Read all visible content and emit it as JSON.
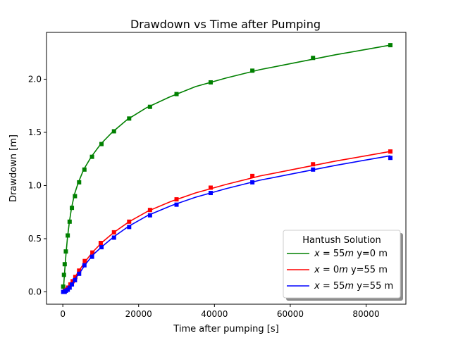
{
  "chart_data": {
    "type": "line",
    "title": "Drawdown vs Time after Pumping",
    "xlabel": "Time after pumping [s]",
    "ylabel": "Drawdown [m]",
    "xlim": [
      -4300,
      90500
    ],
    "ylim": [
      -0.116,
      2.44
    ],
    "xticks": [
      0,
      20000,
      40000,
      60000,
      80000
    ],
    "yticks": [
      0.0,
      0.5,
      1.0,
      1.5,
      2.0
    ],
    "xtick_labels": [
      "0",
      "20000",
      "40000",
      "60000",
      "80000"
    ],
    "ytick_labels": [
      "0.0",
      "0.5",
      "1.0",
      "1.5",
      "2.0"
    ],
    "grid": false,
    "legend": {
      "title": "Hantush Solution",
      "placement": "lower-right"
    },
    "series": [
      {
        "color": "#008000",
        "label_math": "x = 55m",
        "label_suffix": " y=0 m",
        "curve_x": [
          0,
          120,
          250,
          400,
          600,
          850,
          1200,
          1700,
          2300,
          3100,
          4000,
          5500,
          7500,
          10000,
          13000,
          17000,
          22000,
          28000,
          35000,
          43000,
          52000,
          62000,
          72000,
          80000,
          86400
        ],
        "curve_y": [
          0.0,
          0.02,
          0.07,
          0.15,
          0.25,
          0.36,
          0.5,
          0.65,
          0.79,
          0.92,
          1.02,
          1.15,
          1.27,
          1.39,
          1.5,
          1.62,
          1.73,
          1.83,
          1.93,
          2.01,
          2.09,
          2.16,
          2.23,
          2.28,
          2.32
        ],
        "marker_x": [
          100,
          300,
          500,
          800,
          1300,
          1800,
          2400,
          3200,
          4300,
          5700,
          7700,
          10200,
          13500,
          17500,
          23000,
          30000,
          39000,
          50000,
          66000,
          86400
        ],
        "marker_y": [
          0.05,
          0.16,
          0.26,
          0.38,
          0.53,
          0.66,
          0.79,
          0.9,
          1.03,
          1.15,
          1.27,
          1.39,
          1.51,
          1.63,
          1.74,
          1.86,
          1.97,
          2.08,
          2.2,
          2.32
        ]
      },
      {
        "color": "#ff0000",
        "label_math": "x = 0m",
        "label_suffix": " y=55 m",
        "curve_x": [
          0,
          300,
          700,
          1200,
          1800,
          2500,
          3400,
          4500,
          6000,
          8000,
          10500,
          13500,
          17500,
          22500,
          28500,
          35000,
          43000,
          52000,
          62000,
          72000,
          80000,
          86400
        ],
        "curve_y": [
          0.0,
          0.0,
          0.01,
          0.03,
          0.06,
          0.1,
          0.15,
          0.21,
          0.29,
          0.38,
          0.47,
          0.56,
          0.66,
          0.76,
          0.85,
          0.93,
          1.01,
          1.09,
          1.16,
          1.23,
          1.28,
          1.32
        ],
        "marker_x": [
          300,
          600,
          1000,
          1400,
          2000,
          2600,
          3300,
          4300,
          5800,
          7800,
          10000,
          13500,
          17500,
          23000,
          30000,
          39000,
          50000,
          66000,
          86400
        ],
        "marker_y": [
          0.0,
          0.01,
          0.02,
          0.04,
          0.07,
          0.1,
          0.14,
          0.2,
          0.29,
          0.37,
          0.46,
          0.56,
          0.66,
          0.77,
          0.87,
          0.98,
          1.09,
          1.2,
          1.32
        ]
      },
      {
        "color": "#0000ff",
        "label_math": "x = 55m",
        "label_suffix": " y=55 m",
        "curve_x": [
          0,
          300,
          700,
          1200,
          1800,
          2500,
          3400,
          4500,
          6000,
          8000,
          10500,
          13500,
          17500,
          22500,
          28500,
          35000,
          43000,
          52000,
          62000,
          72000,
          80000,
          86400
        ],
        "curve_y": [
          0.0,
          0.0,
          0.01,
          0.02,
          0.04,
          0.08,
          0.13,
          0.18,
          0.26,
          0.35,
          0.43,
          0.52,
          0.62,
          0.72,
          0.81,
          0.89,
          0.97,
          1.05,
          1.12,
          1.19,
          1.24,
          1.28
        ],
        "marker_x": [
          100,
          300,
          500,
          800,
          1300,
          1800,
          2400,
          3200,
          4300,
          5700,
          7700,
          10200,
          13500,
          17500,
          23000,
          30000,
          39000,
          50000,
          66000,
          86400
        ],
        "marker_y": [
          0.0,
          0.0,
          0.0,
          0.01,
          0.02,
          0.04,
          0.07,
          0.11,
          0.17,
          0.25,
          0.33,
          0.42,
          0.51,
          0.61,
          0.72,
          0.82,
          0.93,
          1.03,
          1.15,
          1.26
        ]
      }
    ]
  }
}
